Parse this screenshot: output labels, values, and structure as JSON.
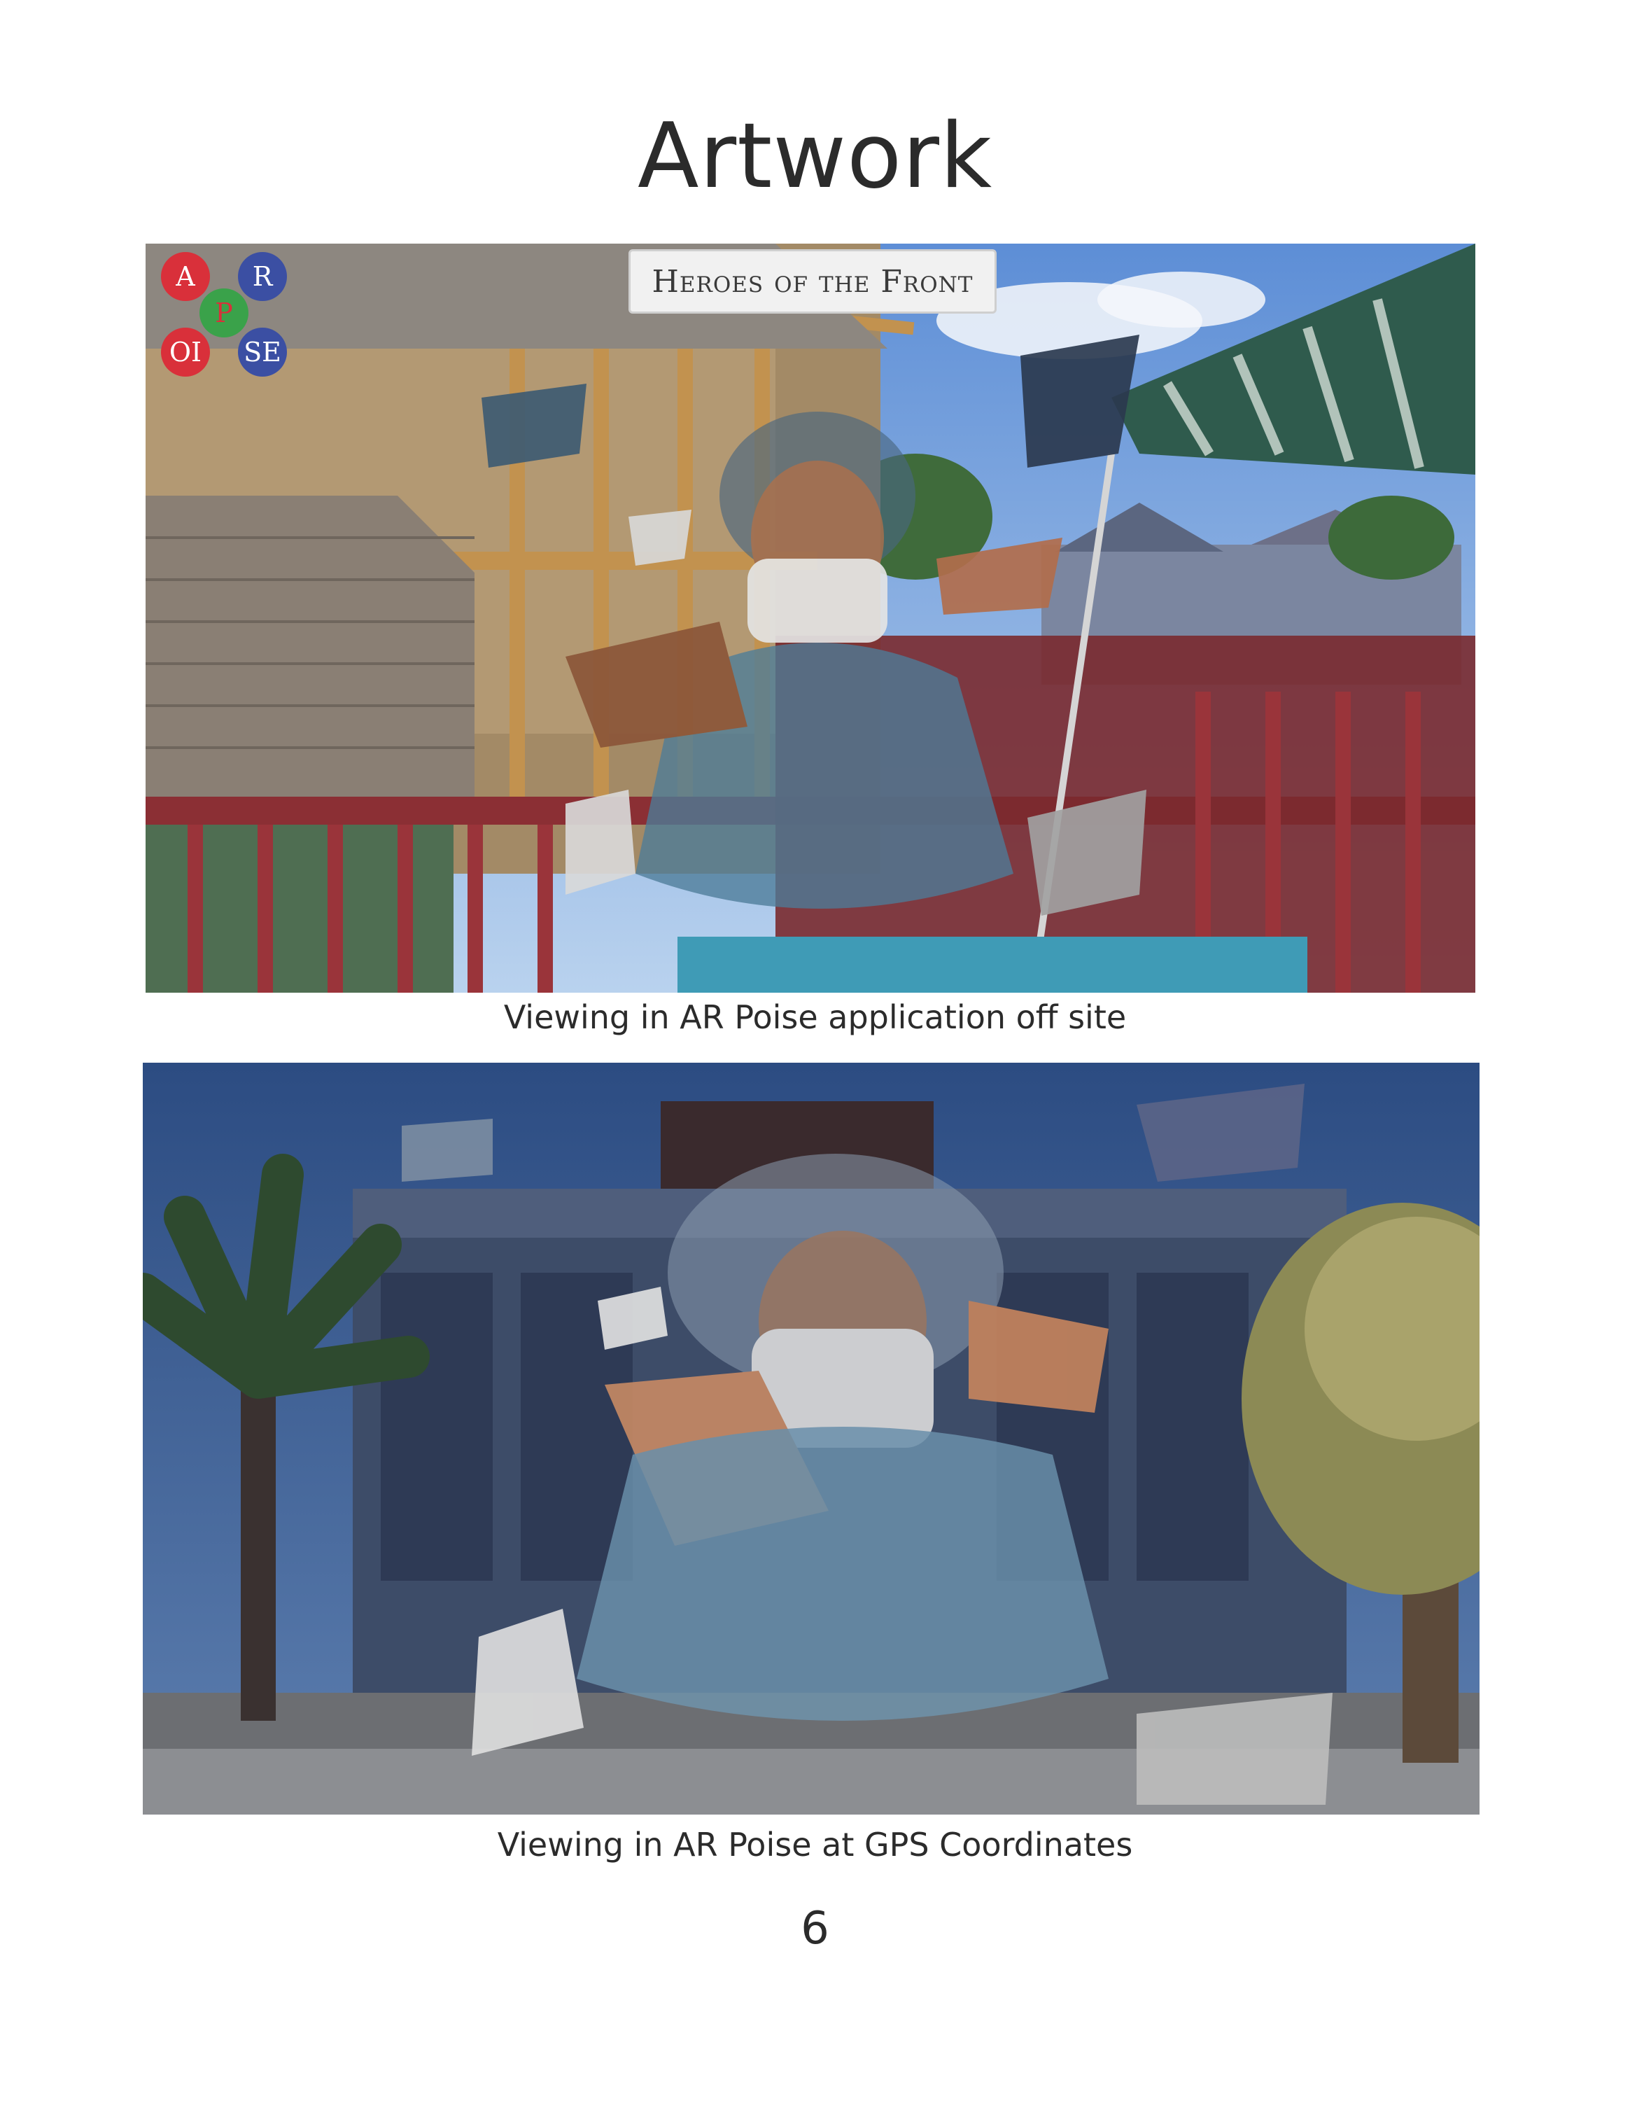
{
  "page": {
    "title": "Artwork",
    "page_number": "6"
  },
  "photo1": {
    "caption": "Viewing in AR Poise application off site",
    "logo": {
      "a": "A",
      "r": "R",
      "p": "P",
      "oi": "OI",
      "se": "SE"
    },
    "banner": "Heroes of the Front"
  },
  "photo2": {
    "caption": "Viewing in AR Poise at GPS Coordinates"
  },
  "colors": {
    "logo_red": "#d9303a",
    "logo_blue": "#3b4fa3",
    "logo_green": "#3aa24a"
  }
}
